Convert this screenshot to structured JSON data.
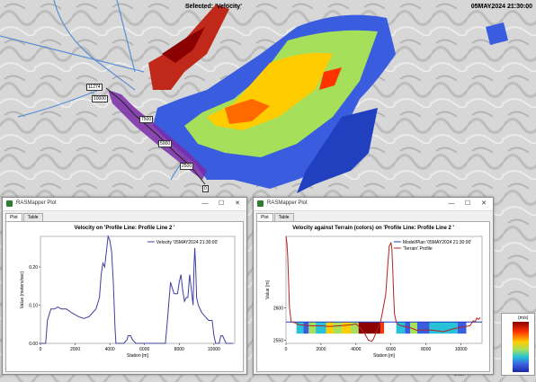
{
  "header": {
    "selected": "Selected: 'Velocity'",
    "timestamp": "05MAY2024 21:30:00"
  },
  "map": {
    "station_labels": [
      "11274",
      "10000",
      "7500",
      "5000",
      "2500",
      "0"
    ],
    "scale_label": "5 km",
    "colorbar_unit": "(m/s)"
  },
  "window1": {
    "title": "RASMapper Plot",
    "tabs": [
      "Plot",
      "Table"
    ],
    "plot_title": "Velocity on 'Profile Line: Profile Line 2 '",
    "legend": "Velocity '05MAY2024 21:30:00'"
  },
  "window2": {
    "title": "RASMapper Plot",
    "tabs": [
      "Plot",
      "Table"
    ],
    "plot_title": "Velocity against Terrain (colors) on 'Profile Line: Profile Line 2 '",
    "legend": [
      "Model/Plan '05MAY2024 21:30:00'",
      "'Terrain' Profile"
    ]
  },
  "controls": {
    "minimize": "—",
    "maximize": "☐",
    "close": "✕"
  },
  "chart_data": [
    {
      "type": "line",
      "title": "Velocity on 'Profile Line: Profile Line 2 '",
      "xlabel": "Station [m]",
      "ylabel": "Value (meters/sec)",
      "xlim": [
        0,
        11200
      ],
      "ylim": [
        0,
        0.28
      ],
      "xticks": [
        0,
        2000,
        4000,
        6000,
        8000,
        10000
      ],
      "yticks": [
        0,
        0.1,
        0.2
      ],
      "ytick_labels": [
        "0.00",
        "0.10",
        "0.20"
      ],
      "series": [
        {
          "name": "Velocity '05MAY2024 21:30:00'",
          "color": "#3f3fa0",
          "x": [
            0,
            100,
            200,
            300,
            400,
            600,
            800,
            1000,
            1200,
            1500,
            1800,
            2000,
            2200,
            2500,
            2800,
            3000,
            3200,
            3400,
            3500,
            3600,
            3700,
            3800,
            3900,
            4000,
            4100,
            4200,
            4300,
            4350,
            4500,
            4800,
            5000,
            5050,
            5200,
            5300,
            5500,
            6000,
            6500,
            7000,
            7200,
            7300,
            7500,
            7700,
            7900,
            8000,
            8100,
            8200,
            8300,
            8400,
            8500,
            8600,
            8700,
            8800,
            8850,
            8900,
            8950,
            9000,
            9100,
            9300,
            9500,
            9700,
            9900,
            10000,
            10100,
            10300,
            10400,
            10500,
            10700,
            10900,
            11000,
            11100
          ],
          "y": [
            0,
            0,
            0,
            0,
            0.06,
            0.09,
            0.09,
            0.095,
            0.09,
            0.09,
            0.08,
            0.075,
            0.07,
            0.065,
            0.07,
            0.08,
            0.09,
            0.12,
            0.18,
            0.21,
            0.2,
            0.24,
            0.28,
            0.27,
            0.24,
            0.16,
            0.04,
            0,
            0,
            0,
            0.01,
            0.02,
            0.02,
            0.01,
            0,
            0,
            0,
            0,
            0,
            0.05,
            0.16,
            0.13,
            0.13,
            0.16,
            0.18,
            0.14,
            0.11,
            0.12,
            0.12,
            0.18,
            0.14,
            0.1,
            0.2,
            0.25,
            0.2,
            0.12,
            0.1,
            0.08,
            0.07,
            0.06,
            0.06,
            0.02,
            0,
            0,
            0.02,
            0.02,
            0,
            0,
            0,
            0
          ]
        }
      ]
    },
    {
      "type": "line",
      "title": "Velocity against Terrain (colors) on 'Profile Line: Profile Line 2 '",
      "xlabel": "Station [m]",
      "ylabel": "Value [m]",
      "xlim": [
        0,
        11200
      ],
      "ylim": [
        2545,
        2710
      ],
      "xticks": [
        0,
        2000,
        4000,
        6000,
        8000,
        10000
      ],
      "yticks": [
        2550,
        2600
      ],
      "series": [
        {
          "name": "Model/Plan '05MAY2024 21:30:00'",
          "color": "#1f3fbf",
          "x": [
            0,
            11200
          ],
          "y": [
            2578,
            2578
          ]
        },
        {
          "name": "'Terrain' Profile",
          "color": "#b22222",
          "x": [
            0,
            50,
            100,
            150,
            200,
            300,
            500,
            700,
            1000,
            1500,
            2000,
            2500,
            3000,
            3500,
            3800,
            4000,
            4200,
            4500,
            4700,
            4900,
            5000,
            5200,
            5400,
            5500,
            5700,
            5800,
            5900,
            6000,
            6050,
            6100,
            6150,
            6200,
            6300,
            6400,
            6500,
            6600,
            7000,
            7500,
            8000,
            8500,
            9000,
            9500,
            10000,
            10500,
            10700,
            10800,
            10900,
            11000,
            11100
          ],
          "y": [
            2710,
            2700,
            2680,
            2640,
            2600,
            2578,
            2577,
            2574,
            2573,
            2572,
            2572,
            2571,
            2572,
            2573,
            2574,
            2575,
            2570,
            2560,
            2550,
            2548,
            2552,
            2565,
            2578,
            2592,
            2620,
            2660,
            2695,
            2700,
            2690,
            2660,
            2620,
            2590,
            2578,
            2574,
            2573,
            2572,
            2570,
            2565,
            2566,
            2565,
            2563,
            2567,
            2570,
            2572,
            2580,
            2578,
            2584,
            2582,
            2585
          ]
        }
      ]
    }
  ]
}
